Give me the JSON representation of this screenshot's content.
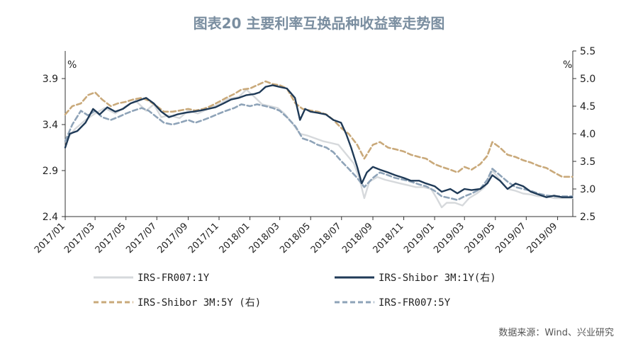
{
  "chart_data": {
    "type": "line",
    "title": "图表20  主要利率互换品种收益率走势图",
    "unit_left": "%",
    "unit_right": "%",
    "source": "数据来源：Wind、兴业研究",
    "left_axis": {
      "ylim": [
        2.4,
        4.2
      ],
      "ticks": [
        "2.4",
        "2.9",
        "3.4",
        "3.9"
      ]
    },
    "right_axis": {
      "ylim": [
        2.5,
        5.5
      ],
      "ticks": [
        "2.5",
        "3.0",
        "3.5",
        "4.0",
        "4.5",
        "5.0",
        "5.5"
      ]
    },
    "x_range": [
      "2017-01-01",
      "2019-10-01"
    ],
    "x_ticks": [
      "2017/01",
      "2017/03",
      "2017/05",
      "2017/07",
      "2017/09",
      "2017/11",
      "2018/01",
      "2018/03",
      "2018/05",
      "2018/07",
      "2018/09",
      "2018/11",
      "2019/01",
      "2019/03",
      "2019/05",
      "2019/07",
      "2019/09"
    ],
    "series": [
      {
        "name": "IRS-FR007:1Y",
        "axis": "left",
        "color": "#d6d9dc",
        "style": "solid",
        "points": [
          [
            "2017-01-01",
            3.22
          ],
          [
            "2017-01-20",
            3.35
          ],
          [
            "2017-02-10",
            3.45
          ],
          [
            "2017-03-01",
            3.52
          ],
          [
            "2017-03-20",
            3.58
          ],
          [
            "2017-04-10",
            3.52
          ],
          [
            "2017-05-01",
            3.6
          ],
          [
            "2017-05-20",
            3.66
          ],
          [
            "2017-06-10",
            3.55
          ],
          [
            "2017-06-25",
            3.62
          ],
          [
            "2017-07-10",
            3.48
          ],
          [
            "2017-07-25",
            3.5
          ],
          [
            "2017-08-15",
            3.47
          ],
          [
            "2017-09-01",
            3.55
          ],
          [
            "2017-09-20",
            3.52
          ],
          [
            "2017-10-10",
            3.57
          ],
          [
            "2017-11-01",
            3.62
          ],
          [
            "2017-11-20",
            3.68
          ],
          [
            "2017-12-10",
            3.7
          ],
          [
            "2017-12-25",
            3.78
          ],
          [
            "2018-01-10",
            3.7
          ],
          [
            "2018-01-25",
            3.62
          ],
          [
            "2018-02-10",
            3.6
          ],
          [
            "2018-02-25",
            3.58
          ],
          [
            "2018-03-10",
            3.52
          ],
          [
            "2018-03-25",
            3.42
          ],
          [
            "2018-04-10",
            3.3
          ],
          [
            "2018-04-25",
            3.28
          ],
          [
            "2018-05-10",
            3.25
          ],
          [
            "2018-05-25",
            3.22
          ],
          [
            "2018-06-10",
            3.2
          ],
          [
            "2018-06-25",
            3.18
          ],
          [
            "2018-07-10",
            3.08
          ],
          [
            "2018-07-25",
            2.98
          ],
          [
            "2018-08-05",
            2.82
          ],
          [
            "2018-08-15",
            2.6
          ],
          [
            "2018-08-25",
            2.78
          ],
          [
            "2018-09-10",
            2.83
          ],
          [
            "2018-09-25",
            2.8
          ],
          [
            "2018-10-10",
            2.78
          ],
          [
            "2018-10-25",
            2.76
          ],
          [
            "2018-11-10",
            2.74
          ],
          [
            "2018-11-25",
            2.72
          ],
          [
            "2018-12-10",
            2.72
          ],
          [
            "2018-12-25",
            2.7
          ],
          [
            "2019-01-05",
            2.6
          ],
          [
            "2019-01-15",
            2.5
          ],
          [
            "2019-01-25",
            2.55
          ],
          [
            "2019-02-10",
            2.55
          ],
          [
            "2019-02-25",
            2.52
          ],
          [
            "2019-03-10",
            2.6
          ],
          [
            "2019-03-25",
            2.65
          ],
          [
            "2019-04-10",
            2.72
          ],
          [
            "2019-04-25",
            2.9
          ],
          [
            "2019-05-10",
            2.8
          ],
          [
            "2019-05-25",
            2.7
          ],
          [
            "2019-06-10",
            2.68
          ],
          [
            "2019-06-25",
            2.65
          ],
          [
            "2019-07-10",
            2.64
          ],
          [
            "2019-07-25",
            2.62
          ],
          [
            "2019-08-10",
            2.62
          ],
          [
            "2019-08-25",
            2.6
          ],
          [
            "2019-09-10",
            2.6
          ],
          [
            "2019-09-30",
            2.6
          ]
        ]
      },
      {
        "name": "IRS-Shibor 3M:1Y(右)",
        "axis": "right",
        "color": "#1f3a57",
        "style": "solid",
        "points": [
          [
            "2017-01-01",
            3.75
          ],
          [
            "2017-01-10",
            4.0
          ],
          [
            "2017-01-25",
            4.05
          ],
          [
            "2017-02-10",
            4.2
          ],
          [
            "2017-02-25",
            4.45
          ],
          [
            "2017-03-10",
            4.35
          ],
          [
            "2017-03-25",
            4.48
          ],
          [
            "2017-04-10",
            4.4
          ],
          [
            "2017-04-25",
            4.45
          ],
          [
            "2017-05-10",
            4.55
          ],
          [
            "2017-05-25",
            4.6
          ],
          [
            "2017-06-10",
            4.65
          ],
          [
            "2017-06-25",
            4.55
          ],
          [
            "2017-07-10",
            4.4
          ],
          [
            "2017-07-25",
            4.3
          ],
          [
            "2017-08-10",
            4.35
          ],
          [
            "2017-08-25",
            4.38
          ],
          [
            "2017-09-10",
            4.4
          ],
          [
            "2017-09-25",
            4.42
          ],
          [
            "2017-10-10",
            4.45
          ],
          [
            "2017-10-25",
            4.48
          ],
          [
            "2017-11-10",
            4.55
          ],
          [
            "2017-11-25",
            4.62
          ],
          [
            "2017-12-10",
            4.65
          ],
          [
            "2017-12-25",
            4.7
          ],
          [
            "2018-01-10",
            4.72
          ],
          [
            "2018-01-20",
            4.75
          ],
          [
            "2018-02-01",
            4.85
          ],
          [
            "2018-02-15",
            4.88
          ],
          [
            "2018-02-28",
            4.85
          ],
          [
            "2018-03-15",
            4.82
          ],
          [
            "2018-03-31",
            4.65
          ],
          [
            "2018-04-10",
            4.25
          ],
          [
            "2018-04-20",
            4.45
          ],
          [
            "2018-05-01",
            4.4
          ],
          [
            "2018-05-15",
            4.38
          ],
          [
            "2018-05-31",
            4.35
          ],
          [
            "2018-06-15",
            4.25
          ],
          [
            "2018-06-30",
            4.2
          ],
          [
            "2018-07-10",
            4.0
          ],
          [
            "2018-07-20",
            3.75
          ],
          [
            "2018-08-01",
            3.4
          ],
          [
            "2018-08-10",
            3.1
          ],
          [
            "2018-08-20",
            3.3
          ],
          [
            "2018-09-01",
            3.4
          ],
          [
            "2018-09-15",
            3.35
          ],
          [
            "2018-10-01",
            3.3
          ],
          [
            "2018-10-15",
            3.25
          ],
          [
            "2018-11-01",
            3.2
          ],
          [
            "2018-11-15",
            3.15
          ],
          [
            "2018-12-01",
            3.15
          ],
          [
            "2018-12-15",
            3.1
          ],
          [
            "2019-01-01",
            3.05
          ],
          [
            "2019-01-15",
            2.95
          ],
          [
            "2019-02-01",
            3.0
          ],
          [
            "2019-02-15",
            2.92
          ],
          [
            "2019-03-01",
            3.0
          ],
          [
            "2019-03-15",
            2.98
          ],
          [
            "2019-04-01",
            3.0
          ],
          [
            "2019-04-15",
            3.1
          ],
          [
            "2019-04-25",
            3.25
          ],
          [
            "2019-05-10",
            3.15
          ],
          [
            "2019-05-25",
            3.0
          ],
          [
            "2019-06-10",
            3.1
          ],
          [
            "2019-06-25",
            3.05
          ],
          [
            "2019-07-10",
            2.95
          ],
          [
            "2019-07-25",
            2.9
          ],
          [
            "2019-08-10",
            2.85
          ],
          [
            "2019-08-25",
            2.88
          ],
          [
            "2019-09-10",
            2.85
          ],
          [
            "2019-09-30",
            2.85
          ]
        ]
      },
      {
        "name": "IRS-Shibor 3M:5Y (右)",
        "axis": "right",
        "color": "#c9a97a",
        "style": "dashed",
        "points": [
          [
            "2017-01-01",
            4.35
          ],
          [
            "2017-01-15",
            4.5
          ],
          [
            "2017-02-01",
            4.55
          ],
          [
            "2017-02-15",
            4.7
          ],
          [
            "2017-03-01",
            4.75
          ],
          [
            "2017-03-15",
            4.62
          ],
          [
            "2017-04-01",
            4.5
          ],
          [
            "2017-04-15",
            4.55
          ],
          [
            "2017-05-01",
            4.58
          ],
          [
            "2017-05-15",
            4.62
          ],
          [
            "2017-06-01",
            4.65
          ],
          [
            "2017-06-15",
            4.6
          ],
          [
            "2017-07-01",
            4.5
          ],
          [
            "2017-07-15",
            4.4
          ],
          [
            "2017-08-01",
            4.4
          ],
          [
            "2017-08-15",
            4.42
          ],
          [
            "2017-09-01",
            4.45
          ],
          [
            "2017-09-15",
            4.42
          ],
          [
            "2017-10-01",
            4.45
          ],
          [
            "2017-10-15",
            4.5
          ],
          [
            "2017-11-01",
            4.58
          ],
          [
            "2017-11-15",
            4.65
          ],
          [
            "2017-12-01",
            4.72
          ],
          [
            "2017-12-15",
            4.8
          ],
          [
            "2018-01-01",
            4.82
          ],
          [
            "2018-01-15",
            4.88
          ],
          [
            "2018-02-01",
            4.95
          ],
          [
            "2018-02-15",
            4.9
          ],
          [
            "2018-03-01",
            4.88
          ],
          [
            "2018-03-15",
            4.82
          ],
          [
            "2018-04-01",
            4.55
          ],
          [
            "2018-04-15",
            4.45
          ],
          [
            "2018-05-01",
            4.42
          ],
          [
            "2018-05-15",
            4.4
          ],
          [
            "2018-06-01",
            4.35
          ],
          [
            "2018-06-15",
            4.25
          ],
          [
            "2018-07-01",
            4.1
          ],
          [
            "2018-07-15",
            4.0
          ],
          [
            "2018-08-01",
            3.8
          ],
          [
            "2018-08-15",
            3.55
          ],
          [
            "2018-09-01",
            3.8
          ],
          [
            "2018-09-15",
            3.85
          ],
          [
            "2018-10-01",
            3.75
          ],
          [
            "2018-10-15",
            3.72
          ],
          [
            "2018-11-01",
            3.68
          ],
          [
            "2018-11-15",
            3.62
          ],
          [
            "2018-12-01",
            3.58
          ],
          [
            "2018-12-15",
            3.55
          ],
          [
            "2019-01-01",
            3.45
          ],
          [
            "2019-01-15",
            3.4
          ],
          [
            "2019-02-01",
            3.35
          ],
          [
            "2019-02-15",
            3.3
          ],
          [
            "2019-03-01",
            3.4
          ],
          [
            "2019-03-15",
            3.35
          ],
          [
            "2019-04-01",
            3.45
          ],
          [
            "2019-04-15",
            3.6
          ],
          [
            "2019-04-25",
            3.85
          ],
          [
            "2019-05-10",
            3.75
          ],
          [
            "2019-05-25",
            3.62
          ],
          [
            "2019-06-10",
            3.58
          ],
          [
            "2019-06-25",
            3.52
          ],
          [
            "2019-07-10",
            3.48
          ],
          [
            "2019-07-25",
            3.42
          ],
          [
            "2019-08-10",
            3.38
          ],
          [
            "2019-08-25",
            3.3
          ],
          [
            "2019-09-10",
            3.22
          ],
          [
            "2019-09-30",
            3.22
          ]
        ]
      },
      {
        "name": "IRS-FR007:5Y",
        "axis": "left",
        "color": "#8ea3b8",
        "style": "dashed",
        "points": [
          [
            "2017-01-01",
            3.22
          ],
          [
            "2017-01-15",
            3.4
          ],
          [
            "2017-02-01",
            3.55
          ],
          [
            "2017-02-15",
            3.5
          ],
          [
            "2017-03-01",
            3.55
          ],
          [
            "2017-03-15",
            3.48
          ],
          [
            "2017-04-01",
            3.45
          ],
          [
            "2017-04-15",
            3.48
          ],
          [
            "2017-05-01",
            3.52
          ],
          [
            "2017-05-15",
            3.55
          ],
          [
            "2017-06-01",
            3.58
          ],
          [
            "2017-06-15",
            3.55
          ],
          [
            "2017-07-01",
            3.48
          ],
          [
            "2017-07-15",
            3.42
          ],
          [
            "2017-08-01",
            3.4
          ],
          [
            "2017-08-15",
            3.42
          ],
          [
            "2017-09-01",
            3.45
          ],
          [
            "2017-09-15",
            3.42
          ],
          [
            "2017-10-01",
            3.45
          ],
          [
            "2017-10-15",
            3.48
          ],
          [
            "2017-11-01",
            3.52
          ],
          [
            "2017-11-15",
            3.55
          ],
          [
            "2017-12-01",
            3.58
          ],
          [
            "2017-12-15",
            3.62
          ],
          [
            "2018-01-01",
            3.6
          ],
          [
            "2018-01-15",
            3.62
          ],
          [
            "2018-02-01",
            3.6
          ],
          [
            "2018-02-15",
            3.58
          ],
          [
            "2018-03-01",
            3.55
          ],
          [
            "2018-03-15",
            3.48
          ],
          [
            "2018-04-01",
            3.38
          ],
          [
            "2018-04-15",
            3.25
          ],
          [
            "2018-05-01",
            3.22
          ],
          [
            "2018-05-15",
            3.18
          ],
          [
            "2018-06-01",
            3.15
          ],
          [
            "2018-06-15",
            3.1
          ],
          [
            "2018-07-01",
            3.0
          ],
          [
            "2018-07-15",
            2.92
          ],
          [
            "2018-08-01",
            2.82
          ],
          [
            "2018-08-15",
            2.72
          ],
          [
            "2018-09-01",
            2.82
          ],
          [
            "2018-09-15",
            2.88
          ],
          [
            "2018-10-01",
            2.85
          ],
          [
            "2018-10-15",
            2.82
          ],
          [
            "2018-11-01",
            2.8
          ],
          [
            "2018-11-15",
            2.78
          ],
          [
            "2018-12-01",
            2.75
          ],
          [
            "2018-12-15",
            2.73
          ],
          [
            "2019-01-01",
            2.68
          ],
          [
            "2019-01-15",
            2.62
          ],
          [
            "2019-02-01",
            2.6
          ],
          [
            "2019-02-15",
            2.58
          ],
          [
            "2019-03-01",
            2.62
          ],
          [
            "2019-03-15",
            2.65
          ],
          [
            "2019-04-01",
            2.7
          ],
          [
            "2019-04-15",
            2.8
          ],
          [
            "2019-04-25",
            2.92
          ],
          [
            "2019-05-10",
            2.85
          ],
          [
            "2019-05-25",
            2.78
          ],
          [
            "2019-06-10",
            2.72
          ],
          [
            "2019-06-25",
            2.7
          ],
          [
            "2019-07-10",
            2.68
          ],
          [
            "2019-07-25",
            2.65
          ],
          [
            "2019-08-10",
            2.63
          ],
          [
            "2019-08-25",
            2.62
          ],
          [
            "2019-09-10",
            2.62
          ],
          [
            "2019-09-30",
            2.62
          ]
        ]
      }
    ]
  }
}
